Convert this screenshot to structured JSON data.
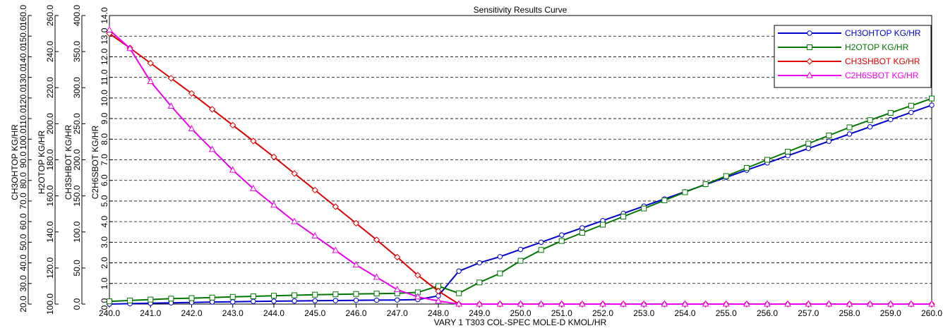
{
  "chart_data": {
    "type": "line",
    "title": "Sensitivity Results Curve",
    "xlabel": "VARY   1 T303 COL-SPEC MOLE-D KMOL/HR",
    "xlim": [
      240.0,
      260.0
    ],
    "xticks": [
      "240.0",
      "241.0",
      "242.0",
      "243.0",
      "244.0",
      "245.0",
      "246.0",
      "247.0",
      "248.0",
      "249.0",
      "250.0",
      "251.0",
      "252.0",
      "253.0",
      "254.0",
      "255.0",
      "256.0",
      "257.0",
      "258.0",
      "259.0",
      "260.0"
    ],
    "grid": true,
    "legend_position": "top-right",
    "x": [
      240.0,
      240.5,
      241.0,
      241.5,
      242.0,
      242.5,
      243.0,
      243.5,
      244.0,
      244.5,
      245.0,
      245.5,
      246.0,
      246.5,
      247.0,
      247.5,
      248.0,
      248.5,
      249.0,
      249.5,
      250.0,
      250.5,
      251.0,
      251.5,
      252.0,
      252.5,
      253.0,
      253.5,
      254.0,
      254.5,
      255.0,
      255.5,
      256.0,
      256.5,
      257.0,
      257.5,
      258.0,
      258.5,
      259.0,
      259.5,
      260.0
    ],
    "y_axes": [
      {
        "label": "CH3OHTOP KG/HR",
        "lim": [
          20.0,
          160.0
        ],
        "ticks": [
          "20.0",
          "30.0",
          "40.0",
          "50.0",
          "60.0",
          "70.0",
          "80.0",
          "90.0",
          "100.0",
          "110.0",
          "120.0",
          "130.0",
          "140.0",
          "150.0",
          "160.0"
        ]
      },
      {
        "label": "H2OTOP KG/HR",
        "lim": [
          100.0,
          260.0
        ],
        "ticks": [
          "100.0",
          "120.0",
          "140.0",
          "160.0",
          "180.0",
          "200.0",
          "220.0",
          "240.0",
          "260.0"
        ]
      },
      {
        "label": "CH3SHBOT KG/HR",
        "lim": [
          0.0,
          400.0
        ],
        "ticks": [
          "0.0",
          "50.0",
          "100.0",
          "150.0",
          "200.0",
          "250.0",
          "300.0",
          "350.0",
          "400.0"
        ]
      },
      {
        "label": "C2H6SBOT KG/HR",
        "lim": [
          0.0,
          14.0
        ],
        "ticks": [
          "0.0",
          "1.0",
          "2.0",
          "3.0",
          "4.0",
          "5.0",
          "6.0",
          "7.0",
          "8.0",
          "9.0",
          "10.0",
          "11.0",
          "12.0",
          "13.0",
          "14.0"
        ]
      }
    ],
    "series": [
      {
        "name": "CH3OHTOP KG/HR",
        "color": "#0000cc",
        "marker": "circle",
        "axis": 0,
        "values": [
          20.0,
          20.2,
          20.4,
          20.6,
          20.8,
          21.0,
          21.1,
          21.3,
          21.4,
          21.5,
          21.6,
          21.7,
          21.8,
          21.9,
          22.0,
          22.2,
          24.0,
          36.0,
          40.0,
          43.0,
          46.5,
          50.0,
          53.5,
          57.0,
          60.5,
          64.0,
          67.5,
          71.0,
          74.5,
          78.0,
          81.5,
          85.0,
          88.5,
          92.0,
          95.5,
          99.0,
          102.5,
          106.0,
          109.5,
          113.0,
          116.5
        ]
      },
      {
        "name": "H2OTOP KG/HR",
        "color": "#007700",
        "marker": "square",
        "axis": 1,
        "values": [
          101.5,
          102.0,
          102.5,
          103.0,
          103.3,
          103.6,
          104.0,
          104.3,
          104.6,
          104.9,
          105.2,
          105.4,
          105.6,
          105.8,
          106.0,
          106.5,
          110.0,
          106.0,
          112.0,
          117.0,
          124.0,
          130.0,
          135.0,
          139.5,
          144.0,
          148.5,
          153.0,
          157.5,
          162.0,
          166.5,
          171.0,
          175.5,
          180.0,
          184.5,
          189.0,
          193.5,
          198.0,
          202.0,
          206.0,
          210.0,
          214.0
        ]
      },
      {
        "name": "CH3SHBOT KG/HR",
        "color": "#dd0000",
        "marker": "diamond",
        "axis": 2,
        "values": [
          375.0,
          355.0,
          334.0,
          313.0,
          292.0,
          270.0,
          248.0,
          226.0,
          204.0,
          181.0,
          158.0,
          135.0,
          112.0,
          89.0,
          65.0,
          40.0,
          18.0,
          0.0,
          0.0,
          0.0,
          0.0,
          0.0,
          0.0,
          0.0,
          0.0,
          0.0,
          0.0,
          0.0,
          0.0,
          0.0,
          0.0,
          0.0,
          0.0,
          0.0,
          0.0,
          0.0,
          0.0,
          0.0,
          0.0,
          0.0,
          0.0
        ]
      },
      {
        "name": "C2H6SBOT KG/HR",
        "color": "#ee00ee",
        "marker": "triangle",
        "axis": 3,
        "values": [
          13.3,
          12.4,
          10.8,
          9.6,
          8.5,
          7.5,
          6.5,
          5.6,
          4.8,
          4.0,
          3.3,
          2.6,
          1.9,
          1.3,
          0.7,
          0.35,
          0.15,
          0.0,
          0.0,
          0.0,
          0.0,
          0.0,
          0.0,
          0.0,
          0.0,
          0.0,
          0.0,
          0.0,
          0.0,
          0.0,
          0.0,
          0.0,
          0.0,
          0.0,
          0.0,
          0.0,
          0.0,
          0.0,
          0.0,
          0.0,
          0.0
        ]
      }
    ]
  }
}
